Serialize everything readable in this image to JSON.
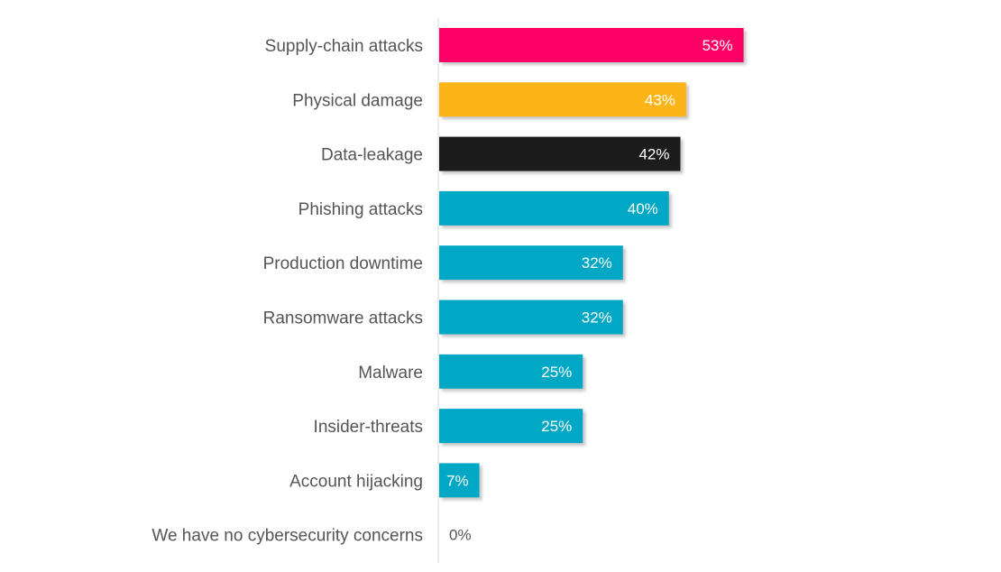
{
  "chart_data": {
    "type": "bar",
    "orientation": "horizontal",
    "categories": [
      "Supply-chain attacks",
      "Physical damage",
      "Data-leakage",
      "Phishing attacks",
      "Production downtime",
      "Ransomware attacks",
      "Malware",
      "Insider-threats",
      "Account hijacking",
      "We have no cybersecurity concerns"
    ],
    "values": [
      53,
      43,
      42,
      40,
      32,
      32,
      25,
      25,
      7,
      0
    ],
    "value_labels": [
      "53%",
      "43%",
      "42%",
      "40%",
      "32%",
      "32%",
      "25%",
      "25%",
      "7%",
      "0%"
    ],
    "unit": "%",
    "xlim": [
      0,
      100
    ],
    "grid": false,
    "legend": "none",
    "title": "",
    "xlabel": "",
    "ylabel": "",
    "colors": [
      "#ff0066",
      "#fcb415",
      "#1e1e1e",
      "#00a8c6",
      "#00a8c6",
      "#00a8c6",
      "#00a8c6",
      "#00a8c6",
      "#00a8c6",
      "#00a8c6"
    ],
    "value_label_colors": [
      "#ffffff",
      "#ffffff",
      "#ffffff",
      "#ffffff",
      "#ffffff",
      "#ffffff",
      "#ffffff",
      "#ffffff",
      "#ffffff",
      "#555555"
    ]
  },
  "colors": {
    "axis": "#d9d9d9",
    "category_text": "#555555",
    "shadow": "#9a9a9a"
  }
}
